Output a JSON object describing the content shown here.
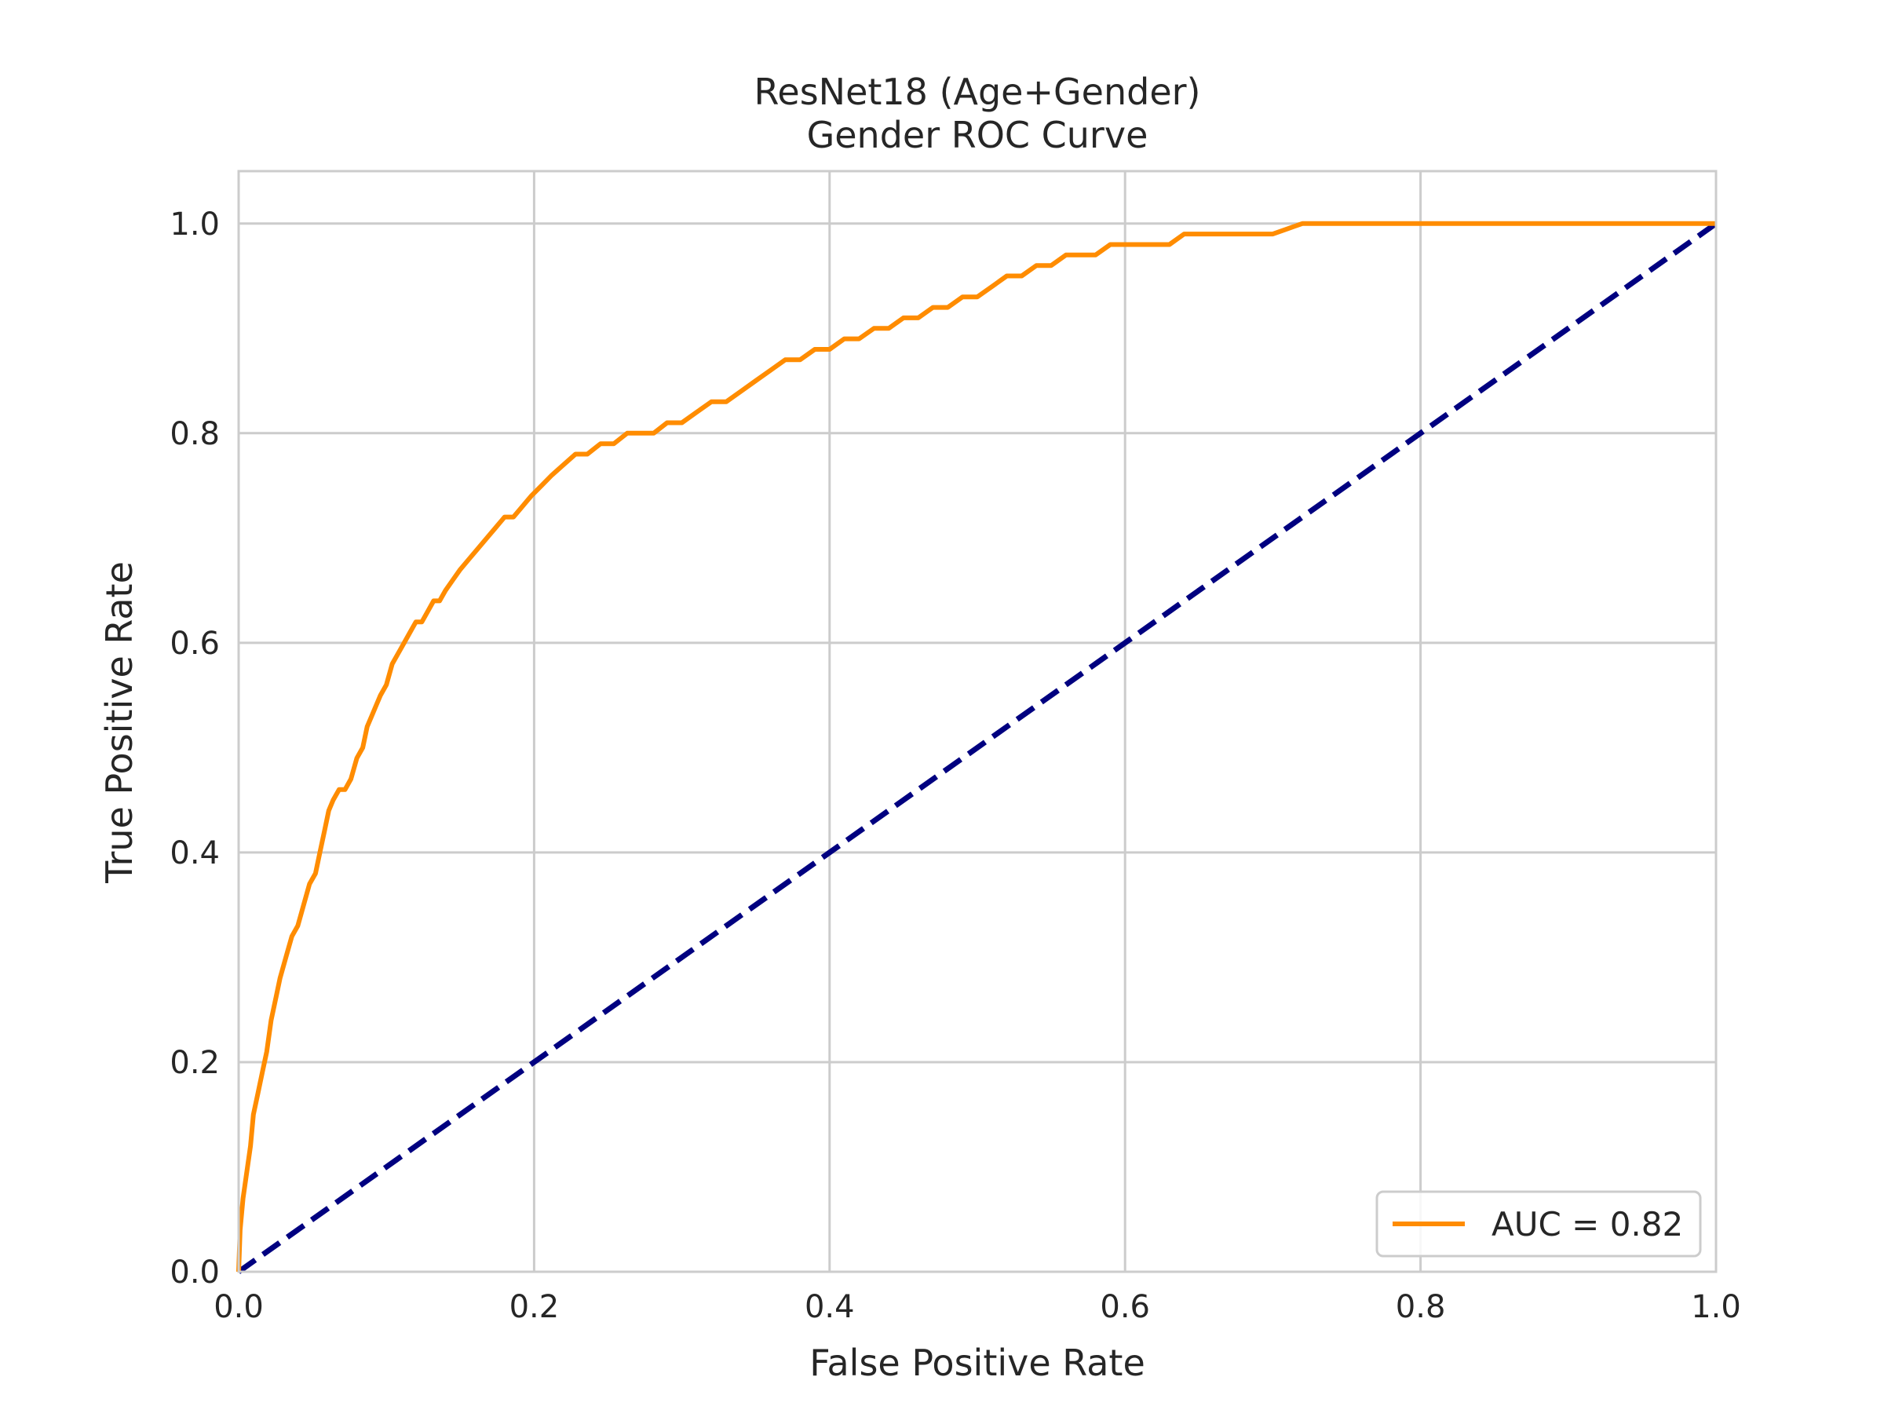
{
  "chart_data": {
    "type": "line",
    "title": "ResNet18 (Age+Gender)",
    "subtitle": "Gender ROC Curve",
    "xlabel": "False Positive Rate",
    "ylabel": "True Positive Rate",
    "xlim": [
      0.0,
      1.0
    ],
    "ylim": [
      0.0,
      1.05
    ],
    "x_ticks": [
      "0.0",
      "0.2",
      "0.4",
      "0.6",
      "0.8",
      "1.0"
    ],
    "y_ticks": [
      "0.0",
      "0.2",
      "0.4",
      "0.6",
      "0.8",
      "1.0"
    ],
    "grid": true,
    "legend_position": "lower-right",
    "series": [
      {
        "name": "AUC = 0.82",
        "color": "#ff8c00",
        "style": "solid",
        "x": [
          0.0,
          0.001,
          0.003,
          0.005,
          0.008,
          0.01,
          0.013,
          0.016,
          0.019,
          0.022,
          0.025,
          0.028,
          0.032,
          0.036,
          0.04,
          0.044,
          0.048,
          0.052,
          0.055,
          0.058,
          0.061,
          0.064,
          0.068,
          0.072,
          0.076,
          0.08,
          0.084,
          0.087,
          0.09,
          0.093,
          0.096,
          0.1,
          0.104,
          0.108,
          0.112,
          0.116,
          0.12,
          0.124,
          0.128,
          0.132,
          0.136,
          0.14,
          0.145,
          0.15,
          0.156,
          0.162,
          0.168,
          0.174,
          0.18,
          0.186,
          0.192,
          0.198,
          0.205,
          0.212,
          0.22,
          0.228,
          0.236,
          0.245,
          0.254,
          0.263,
          0.272,
          0.281,
          0.29,
          0.3,
          0.31,
          0.32,
          0.33,
          0.34,
          0.35,
          0.36,
          0.37,
          0.38,
          0.39,
          0.4,
          0.41,
          0.42,
          0.43,
          0.44,
          0.45,
          0.46,
          0.47,
          0.48,
          0.49,
          0.5,
          0.51,
          0.52,
          0.53,
          0.54,
          0.55,
          0.56,
          0.57,
          0.58,
          0.59,
          0.6,
          0.61,
          0.62,
          0.63,
          0.64,
          0.65,
          0.66,
          0.67,
          0.68,
          0.69,
          0.7,
          0.71,
          0.72,
          0.74,
          0.76,
          0.78,
          0.8,
          0.82,
          0.84,
          0.86,
          1.0
        ],
        "y": [
          0.0,
          0.04,
          0.07,
          0.09,
          0.12,
          0.15,
          0.17,
          0.19,
          0.21,
          0.24,
          0.26,
          0.28,
          0.3,
          0.32,
          0.33,
          0.35,
          0.37,
          0.38,
          0.4,
          0.42,
          0.44,
          0.45,
          0.46,
          0.46,
          0.47,
          0.49,
          0.5,
          0.52,
          0.53,
          0.54,
          0.55,
          0.56,
          0.58,
          0.59,
          0.6,
          0.61,
          0.62,
          0.62,
          0.63,
          0.64,
          0.64,
          0.65,
          0.66,
          0.67,
          0.68,
          0.69,
          0.7,
          0.71,
          0.72,
          0.72,
          0.73,
          0.74,
          0.75,
          0.76,
          0.77,
          0.78,
          0.78,
          0.79,
          0.79,
          0.8,
          0.8,
          0.8,
          0.81,
          0.81,
          0.82,
          0.83,
          0.83,
          0.84,
          0.85,
          0.86,
          0.87,
          0.87,
          0.88,
          0.88,
          0.89,
          0.89,
          0.9,
          0.9,
          0.91,
          0.91,
          0.92,
          0.92,
          0.93,
          0.93,
          0.94,
          0.95,
          0.95,
          0.96,
          0.96,
          0.97,
          0.97,
          0.97,
          0.98,
          0.98,
          0.98,
          0.98,
          0.98,
          0.99,
          0.99,
          0.99,
          0.99,
          0.99,
          0.99,
          0.99,
          0.995,
          1.0,
          1.0,
          1.0,
          1.0,
          1.0,
          1.0,
          1.0,
          1.0,
          1.0
        ]
      },
      {
        "color": "#000080",
        "style": "dashed",
        "x": [
          0.0,
          1.0
        ],
        "y": [
          0.0,
          1.0
        ]
      }
    ]
  }
}
